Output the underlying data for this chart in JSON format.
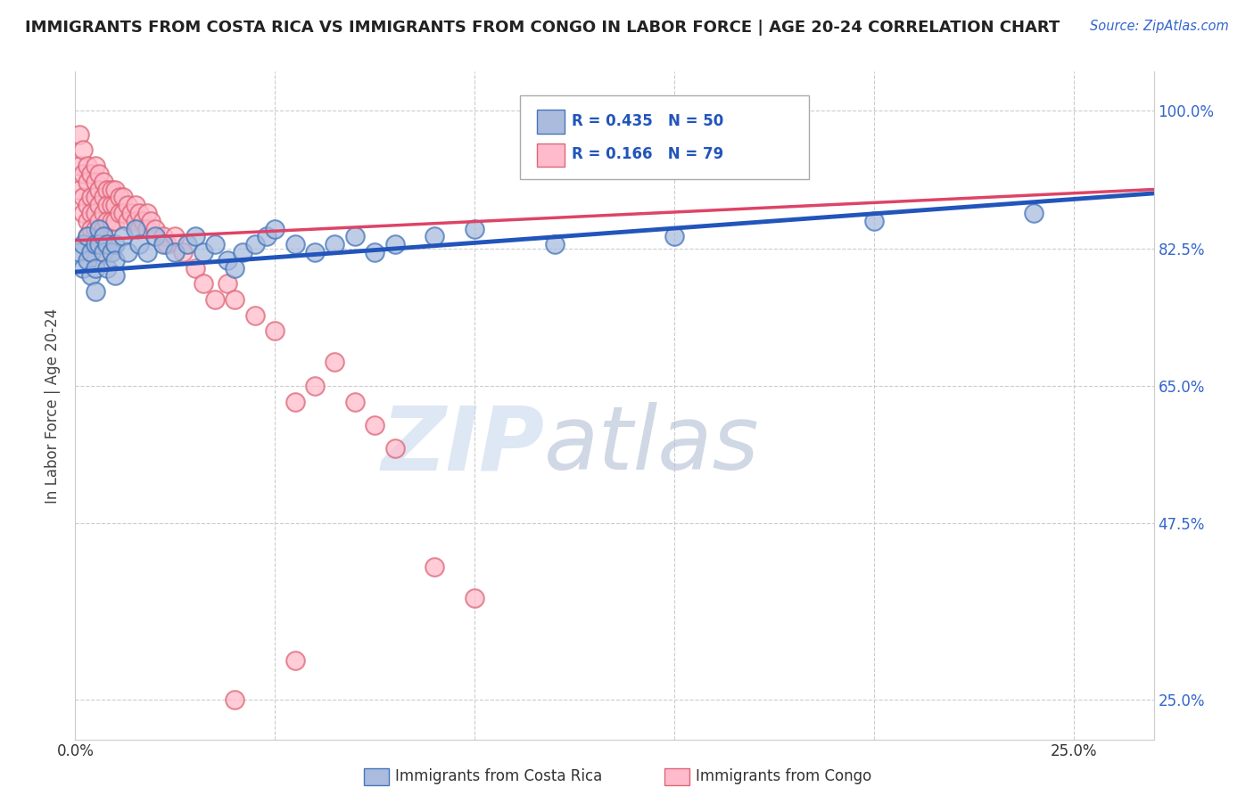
{
  "title": "IMMIGRANTS FROM COSTA RICA VS IMMIGRANTS FROM CONGO IN LABOR FORCE | AGE 20-24 CORRELATION CHART",
  "source": "Source: ZipAtlas.com",
  "ylabel": "In Labor Force | Age 20-24",
  "x_min": 0.0,
  "x_max": 0.27,
  "y_min": 0.2,
  "y_max": 1.05,
  "x_ticks": [
    0.0,
    0.05,
    0.1,
    0.15,
    0.2,
    0.25
  ],
  "x_tick_labels": [
    "0.0%",
    "",
    "",
    "",
    "",
    "25.0%"
  ],
  "y_ticks": [
    0.25,
    0.475,
    0.65,
    0.825,
    1.0
  ],
  "y_tick_labels_right": [
    "25.0%",
    "47.5%",
    "65.0%",
    "82.5%",
    "100.0%"
  ],
  "legend_r_blue": "R = 0.435",
  "legend_n_blue": "N = 50",
  "legend_r_pink": "R = 0.166",
  "legend_n_pink": "N = 79",
  "blue_fill": "#aabbdd",
  "blue_edge": "#4477bb",
  "pink_fill": "#ffbbcc",
  "pink_edge": "#dd6677",
  "blue_line_color": "#2255bb",
  "pink_line_color": "#dd4466",
  "watermark_zip": "ZIP",
  "watermark_atlas": "atlas",
  "watermark_color_zip": "#bbccee",
  "watermark_color_atlas": "#99aacc",
  "background_color": "#ffffff",
  "grid_color": "#cccccc",
  "blue_scatter_x": [
    0.001,
    0.002,
    0.002,
    0.003,
    0.003,
    0.004,
    0.004,
    0.005,
    0.005,
    0.005,
    0.006,
    0.006,
    0.007,
    0.007,
    0.008,
    0.008,
    0.009,
    0.01,
    0.01,
    0.01,
    0.012,
    0.013,
    0.015,
    0.016,
    0.018,
    0.02,
    0.022,
    0.025,
    0.028,
    0.03,
    0.032,
    0.035,
    0.038,
    0.04,
    0.042,
    0.045,
    0.048,
    0.05,
    0.055,
    0.06,
    0.065,
    0.07,
    0.075,
    0.08,
    0.09,
    0.1,
    0.12,
    0.15,
    0.2,
    0.24
  ],
  "blue_scatter_y": [
    0.82,
    0.83,
    0.8,
    0.84,
    0.81,
    0.82,
    0.79,
    0.83,
    0.8,
    0.77,
    0.85,
    0.83,
    0.84,
    0.82,
    0.83,
    0.8,
    0.82,
    0.83,
    0.81,
    0.79,
    0.84,
    0.82,
    0.85,
    0.83,
    0.82,
    0.84,
    0.83,
    0.82,
    0.83,
    0.84,
    0.82,
    0.83,
    0.81,
    0.8,
    0.82,
    0.83,
    0.84,
    0.85,
    0.83,
    0.82,
    0.83,
    0.84,
    0.82,
    0.83,
    0.84,
    0.85,
    0.83,
    0.84,
    0.86,
    0.87
  ],
  "pink_scatter_x": [
    0.001,
    0.001,
    0.001,
    0.002,
    0.002,
    0.002,
    0.002,
    0.003,
    0.003,
    0.003,
    0.003,
    0.003,
    0.004,
    0.004,
    0.004,
    0.004,
    0.005,
    0.005,
    0.005,
    0.005,
    0.005,
    0.005,
    0.005,
    0.006,
    0.006,
    0.006,
    0.006,
    0.006,
    0.007,
    0.007,
    0.007,
    0.007,
    0.007,
    0.008,
    0.008,
    0.008,
    0.009,
    0.009,
    0.009,
    0.01,
    0.01,
    0.01,
    0.011,
    0.011,
    0.012,
    0.012,
    0.013,
    0.013,
    0.014,
    0.015,
    0.015,
    0.016,
    0.016,
    0.017,
    0.018,
    0.018,
    0.019,
    0.02,
    0.022,
    0.023,
    0.025,
    0.027,
    0.03,
    0.032,
    0.035,
    0.038,
    0.04,
    0.045,
    0.05,
    0.055,
    0.06,
    0.065,
    0.07,
    0.075,
    0.08,
    0.09,
    0.1,
    0.055,
    0.04
  ],
  "pink_scatter_y": [
    0.97,
    0.93,
    0.9,
    0.95,
    0.92,
    0.89,
    0.87,
    0.93,
    0.91,
    0.88,
    0.86,
    0.84,
    0.92,
    0.89,
    0.87,
    0.85,
    0.93,
    0.91,
    0.89,
    0.87,
    0.85,
    0.83,
    0.81,
    0.92,
    0.9,
    0.88,
    0.86,
    0.84,
    0.91,
    0.89,
    0.87,
    0.85,
    0.83,
    0.9,
    0.88,
    0.86,
    0.9,
    0.88,
    0.86,
    0.9,
    0.88,
    0.86,
    0.89,
    0.87,
    0.89,
    0.87,
    0.88,
    0.86,
    0.87,
    0.88,
    0.86,
    0.87,
    0.85,
    0.86,
    0.87,
    0.85,
    0.86,
    0.85,
    0.84,
    0.83,
    0.84,
    0.82,
    0.8,
    0.78,
    0.76,
    0.78,
    0.76,
    0.74,
    0.72,
    0.63,
    0.65,
    0.68,
    0.63,
    0.6,
    0.57,
    0.42,
    0.38,
    0.3,
    0.25
  ],
  "blue_line_x": [
    0.0,
    0.27
  ],
  "blue_line_y": [
    0.795,
    0.895
  ],
  "pink_line_x": [
    0.0,
    0.27
  ],
  "pink_line_y": [
    0.835,
    0.9
  ]
}
